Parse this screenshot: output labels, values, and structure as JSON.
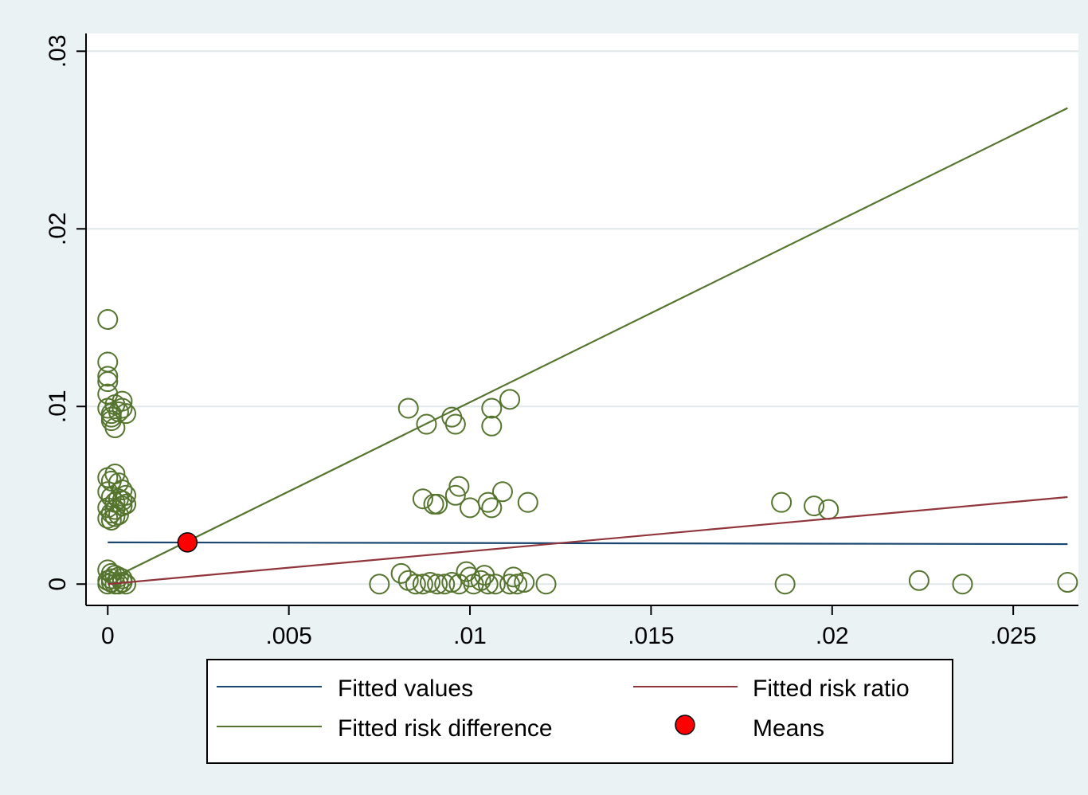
{
  "chart_data": {
    "type": "scatter",
    "title": "",
    "xlabel": "",
    "ylabel": "",
    "xlim": [
      -0.0006,
      0.0268
    ],
    "ylim": [
      -0.0012,
      0.031
    ],
    "x_ticks": [
      0,
      0.005,
      0.01,
      0.015,
      0.02,
      0.025
    ],
    "x_tick_labels": [
      "0",
      ".005",
      ".01",
      ".015",
      ".02",
      ".025"
    ],
    "y_ticks": [
      0,
      0.01,
      0.02,
      0.03
    ],
    "y_tick_labels": [
      "0",
      ".01",
      ".02",
      ".03"
    ],
    "grid": "horizontal",
    "legend_position": "bottom",
    "colors": {
      "fitted_values": "#1a476f",
      "fitted_risk_ratio": "#90353b",
      "fitted_risk_difference": "#55752f",
      "means": "#ff0000",
      "observations": "#55752f"
    },
    "series": [
      {
        "name": "Fitted values",
        "type": "line",
        "points": [
          [
            0,
            0.00235
          ],
          [
            0.0265,
            0.00225
          ]
        ]
      },
      {
        "name": "Fitted risk ratio",
        "type": "line",
        "points": [
          [
            0,
            0.0
          ],
          [
            0.0265,
            0.0049
          ]
        ]
      },
      {
        "name": "Fitted risk difference",
        "type": "line",
        "points": [
          [
            0,
            0.0002
          ],
          [
            0.0265,
            0.0268
          ]
        ]
      },
      {
        "name": "Means",
        "type": "point",
        "points": [
          [
            0.0022,
            0.00235
          ]
        ]
      },
      {
        "type": "scatter",
        "marker": "hollow-circle",
        "points": [
          [
            0.0,
            0.0149
          ],
          [
            0.0,
            0.0125
          ],
          [
            0.0,
            0.0117
          ],
          [
            0.0,
            0.0114
          ],
          [
            0.0,
            0.0107
          ],
          [
            0.0,
            0.0099
          ],
          [
            0.0001,
            0.0096
          ],
          [
            0.0001,
            0.0092
          ],
          [
            0.0002,
            0.0101
          ],
          [
            0.0003,
            0.0097
          ],
          [
            0.0004,
            0.0099
          ],
          [
            0.0005,
            0.0096
          ],
          [
            0.0002,
            0.0088
          ],
          [
            0.0004,
            0.0103
          ],
          [
            0.0001,
            0.0094
          ],
          [
            0.0,
            0.006
          ],
          [
            0.0001,
            0.0058
          ],
          [
            0.0002,
            0.0062
          ],
          [
            0.0003,
            0.0057
          ],
          [
            0.0004,
            0.0053
          ],
          [
            0.0005,
            0.005
          ],
          [
            0.0,
            0.0052
          ],
          [
            0.0001,
            0.0049
          ],
          [
            0.0002,
            0.0046
          ],
          [
            0.0003,
            0.0048
          ],
          [
            0.0004,
            0.0044
          ],
          [
            0.0005,
            0.0045
          ],
          [
            0.0,
            0.0043
          ],
          [
            0.0001,
            0.004
          ],
          [
            0.0002,
            0.0042
          ],
          [
            0.0003,
            0.0039
          ],
          [
            0.0,
            0.0037
          ],
          [
            0.0001,
            0.0036
          ],
          [
            0.0002,
            0.0038
          ],
          [
            0.0004,
            0.0047
          ],
          [
            0.0,
            0.0008
          ],
          [
            0.0001,
            0.0006
          ],
          [
            0.0002,
            0.0005
          ],
          [
            0.0003,
            0.0004
          ],
          [
            0.0004,
            0.0003
          ],
          [
            0.0,
            0.0002
          ],
          [
            0.0001,
            0.0001
          ],
          [
            0.0002,
            0.0
          ],
          [
            0.0003,
            0.0
          ],
          [
            0.0004,
            0.0001
          ],
          [
            0.0005,
            0.0
          ],
          [
            0.0,
            0.0
          ],
          [
            0.0001,
            0.0003
          ],
          [
            0.0083,
            0.0099
          ],
          [
            0.0088,
            0.009
          ],
          [
            0.0095,
            0.0094
          ],
          [
            0.0096,
            0.009
          ],
          [
            0.0106,
            0.0099
          ],
          [
            0.0106,
            0.0089
          ],
          [
            0.0111,
            0.0104
          ],
          [
            0.0087,
            0.0048
          ],
          [
            0.009,
            0.0045
          ],
          [
            0.0091,
            0.0045
          ],
          [
            0.0096,
            0.005
          ],
          [
            0.0097,
            0.0055
          ],
          [
            0.01,
            0.0043
          ],
          [
            0.0105,
            0.0046
          ],
          [
            0.0106,
            0.0043
          ],
          [
            0.0109,
            0.0052
          ],
          [
            0.0116,
            0.0046
          ],
          [
            0.0186,
            0.0046
          ],
          [
            0.0195,
            0.0044
          ],
          [
            0.0199,
            0.0042
          ],
          [
            0.0075,
            0.0
          ],
          [
            0.0081,
            0.0006
          ],
          [
            0.0083,
            0.0002
          ],
          [
            0.0085,
            0.0
          ],
          [
            0.0087,
            0.0
          ],
          [
            0.0089,
            0.0001
          ],
          [
            0.0091,
            0.0
          ],
          [
            0.0093,
            0.0
          ],
          [
            0.0095,
            0.0001
          ],
          [
            0.0097,
            0.0
          ],
          [
            0.0099,
            0.0007
          ],
          [
            0.01,
            0.0004
          ],
          [
            0.0101,
            0.0
          ],
          [
            0.0103,
            0.0002
          ],
          [
            0.0104,
            0.0005
          ],
          [
            0.0105,
            0.0
          ],
          [
            0.0107,
            0.0
          ],
          [
            0.0111,
            0.0
          ],
          [
            0.0112,
            0.0004
          ],
          [
            0.0113,
            0.0
          ],
          [
            0.0115,
            0.0001
          ],
          [
            0.0121,
            0.0
          ],
          [
            0.0187,
            0.0
          ],
          [
            0.0224,
            0.0002
          ],
          [
            0.0236,
            0.0
          ],
          [
            0.0265,
            0.0001
          ]
        ]
      }
    ]
  }
}
